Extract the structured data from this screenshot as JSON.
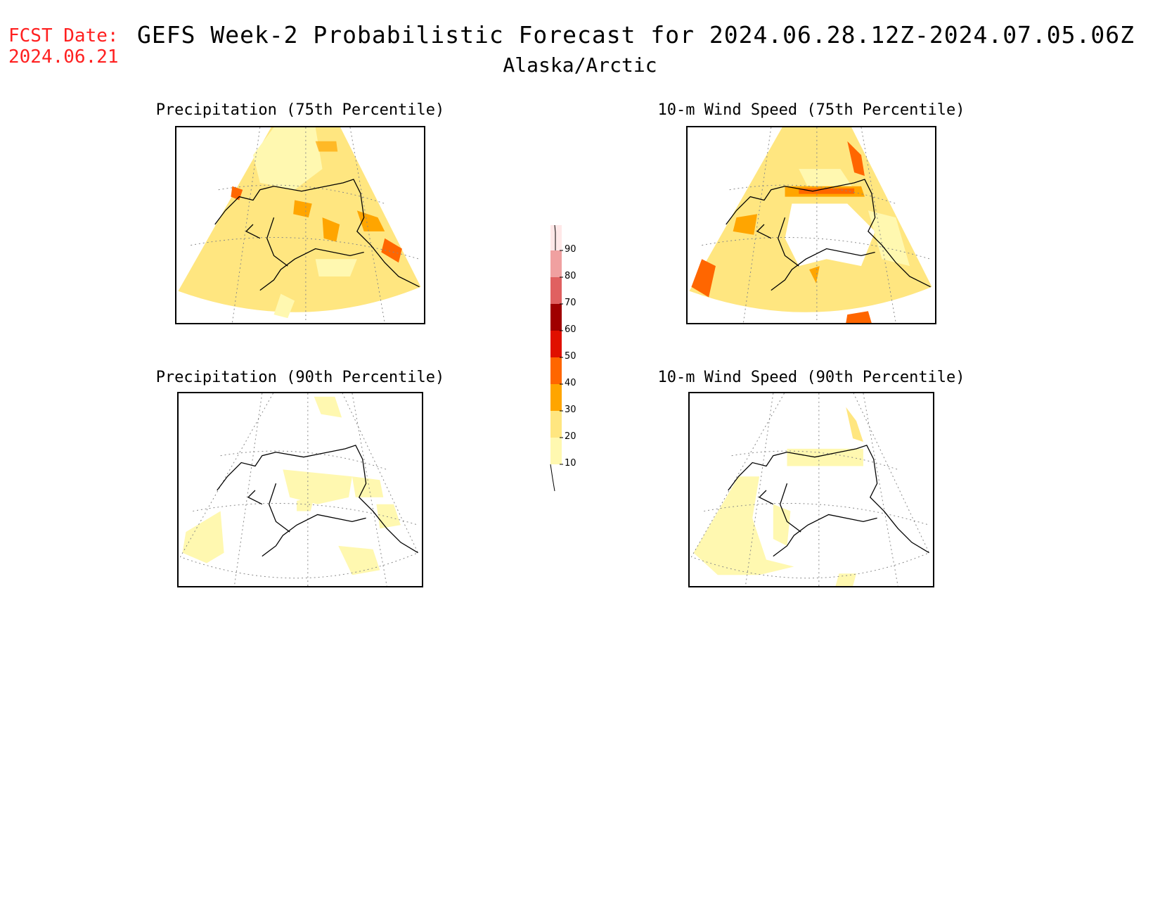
{
  "fcst_date": {
    "label": "FCST Date:",
    "value": "2024.06.21"
  },
  "title": "GEFS Week-2 Probabilistic Forecast for 2024.06.28.12Z-2024.07.05.06Z",
  "region": "Alaska/Arctic",
  "panels": [
    {
      "title": "Precipitation (75th Percentile)"
    },
    {
      "title": "10-m Wind Speed (75th Percentile)"
    },
    {
      "title": "Precipitation (90th Percentile)"
    },
    {
      "title": "10-m Wind Speed (90th Percentile)"
    }
  ],
  "colorbar": {
    "levels": [
      "10",
      "20",
      "30",
      "40",
      "50",
      "60",
      "70",
      "80",
      "90"
    ],
    "colors": [
      "#fff8b0",
      "#ffe680",
      "#ffa500",
      "#ff6600",
      "#e01000",
      "#a00000",
      "#e06060",
      "#f0a0a0",
      "#ffe8e8"
    ]
  },
  "colors": {
    "yellow_light": "#fff8b0",
    "yellow": "#ffe680",
    "orange": "#ffa500",
    "dark_orange": "#ff6600"
  }
}
